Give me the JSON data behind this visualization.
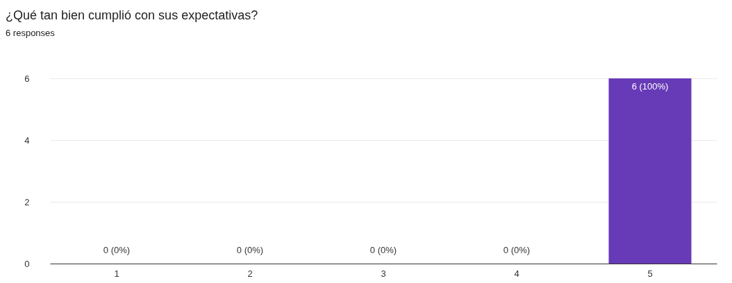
{
  "chart_data": {
    "type": "bar",
    "title": "¿Qué tan bien cumplió con sus expectativas?",
    "subtitle": "6 responses",
    "categories": [
      "1",
      "2",
      "3",
      "4",
      "5"
    ],
    "values": [
      0,
      0,
      0,
      0,
      6
    ],
    "value_labels": [
      "0 (0%)",
      "0 (0%)",
      "0 (0%)",
      "0 (0%)",
      "6 (100%)"
    ],
    "color": "#673ab7",
    "ylim": [
      0,
      6
    ],
    "yticks": [
      0,
      2,
      4,
      6
    ],
    "grid": "y"
  }
}
